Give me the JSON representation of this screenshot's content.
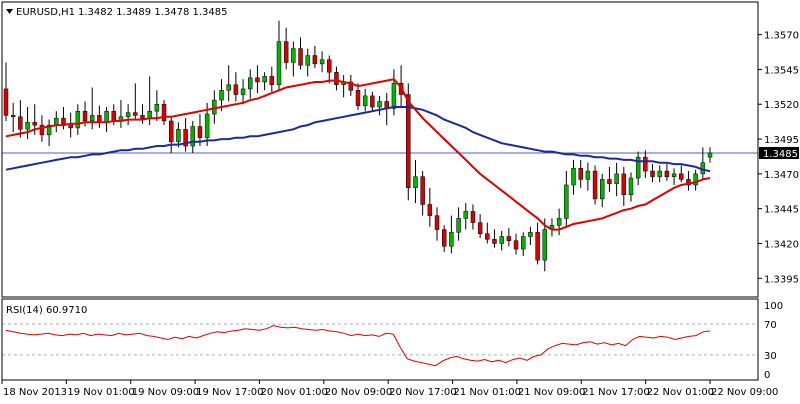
{
  "header": {
    "symbol": "EURUSD,H1",
    "ohlc": "1.3482 1.3489 1.3478 1.3485"
  },
  "rsi_panel": {
    "label": "RSI(14) 60.9710"
  },
  "colors": {
    "bull_candle": "#00b400",
    "bear_candle": "#d80000",
    "candle_outline": "#000000",
    "ma_fast": "#e00000",
    "ma_slow": "#1a2a9a",
    "rsi_line": "#e00000",
    "price_line": "#1a2a9a",
    "grid": "#c8c8c8",
    "level_lines": "#b4b4b4"
  },
  "icons": {
    "symbol_menu": "triangle-down-icon"
  },
  "chart_data": [
    {
      "type": "candlestick",
      "title": "EURUSD,H1",
      "y_ticks": [
        "1.3570",
        "1.3545",
        "1.3520",
        "1.3495",
        "1.3470",
        "1.3445",
        "1.3420",
        "1.3395"
      ],
      "ylim": [
        1.3383,
        1.3592
      ],
      "current_price": "1.3485",
      "x_ticks": [
        "18 Nov 2013",
        "19 Nov 01:00",
        "19 Nov 09:00",
        "19 Nov 17:00",
        "20 Nov 01:00",
        "20 Nov 09:00",
        "20 Nov 17:00",
        "21 Nov 01:00",
        "21 Nov 09:00",
        "21 Nov 17:00",
        "22 Nov 01:00",
        "22 Nov 09:00"
      ],
      "candles": [
        [
          1.3531,
          1.355,
          1.3508,
          1.3512
        ],
        [
          1.3512,
          1.3521,
          1.35,
          1.3511
        ],
        [
          1.3511,
          1.3523,
          1.3496,
          1.3502
        ],
        [
          1.3502,
          1.3518,
          1.3495,
          1.3507
        ],
        [
          1.3507,
          1.352,
          1.3498,
          1.3505
        ],
        [
          1.3505,
          1.3512,
          1.3493,
          1.3498
        ],
        [
          1.3498,
          1.3509,
          1.349,
          1.3505
        ],
        [
          1.3505,
          1.3515,
          1.35,
          1.351
        ],
        [
          1.351,
          1.3518,
          1.3502,
          1.3506
        ],
        [
          1.3506,
          1.3514,
          1.3496,
          1.3503
        ],
        [
          1.3503,
          1.352,
          1.3498,
          1.3515
        ],
        [
          1.3515,
          1.3522,
          1.3504,
          1.3508
        ],
        [
          1.3508,
          1.3532,
          1.3502,
          1.3512
        ],
        [
          1.3512,
          1.3519,
          1.3503,
          1.3507
        ],
        [
          1.3507,
          1.3518,
          1.35,
          1.3515
        ],
        [
          1.3515,
          1.352,
          1.3505,
          1.3508
        ],
        [
          1.3508,
          1.3523,
          1.3503,
          1.3511
        ],
        [
          1.3511,
          1.352,
          1.3505,
          1.3514
        ],
        [
          1.3514,
          1.3535,
          1.3509,
          1.3512
        ],
        [
          1.3512,
          1.352,
          1.3506,
          1.351
        ],
        [
          1.351,
          1.354,
          1.3505,
          1.3515
        ],
        [
          1.3515,
          1.353,
          1.3508,
          1.352
        ],
        [
          1.352,
          1.3523,
          1.3505,
          1.3508
        ],
        [
          1.3508,
          1.3511,
          1.3485,
          1.3493
        ],
        [
          1.3493,
          1.3507,
          1.3489,
          1.3502
        ],
        [
          1.3502,
          1.351,
          1.3486,
          1.349
        ],
        [
          1.349,
          1.3508,
          1.3485,
          1.3504
        ],
        [
          1.3504,
          1.3513,
          1.349,
          1.3496
        ],
        [
          1.3496,
          1.3521,
          1.349,
          1.3513
        ],
        [
          1.3513,
          1.353,
          1.3506,
          1.3523
        ],
        [
          1.3523,
          1.3538,
          1.3515,
          1.353
        ],
        [
          1.353,
          1.3548,
          1.3522,
          1.3534
        ],
        [
          1.3534,
          1.3543,
          1.3522,
          1.3527
        ],
        [
          1.3527,
          1.3538,
          1.352,
          1.3531
        ],
        [
          1.3531,
          1.3545,
          1.3524,
          1.3539
        ],
        [
          1.3539,
          1.3548,
          1.3528,
          1.3536
        ],
        [
          1.3536,
          1.3543,
          1.353,
          1.354
        ],
        [
          1.354,
          1.3547,
          1.3529,
          1.3534
        ],
        [
          1.3534,
          1.358,
          1.353,
          1.3565
        ],
        [
          1.3565,
          1.3575,
          1.3545,
          1.355
        ],
        [
          1.355,
          1.3565,
          1.354,
          1.356
        ],
        [
          1.356,
          1.3568,
          1.3545,
          1.3548
        ],
        [
          1.3548,
          1.356,
          1.354,
          1.3555
        ],
        [
          1.3555,
          1.3562,
          1.3546,
          1.3549
        ],
        [
          1.3549,
          1.3558,
          1.3543,
          1.3552
        ],
        [
          1.3552,
          1.3555,
          1.3535,
          1.3543
        ],
        [
          1.3543,
          1.3547,
          1.353,
          1.3534
        ],
        [
          1.3534,
          1.3541,
          1.3525,
          1.3536
        ],
        [
          1.3536,
          1.3541,
          1.3526,
          1.353
        ],
        [
          1.353,
          1.3535,
          1.3516,
          1.3519
        ],
        [
          1.3519,
          1.3531,
          1.3515,
          1.3526
        ],
        [
          1.3526,
          1.3529,
          1.3515,
          1.3518
        ],
        [
          1.3518,
          1.3526,
          1.3512,
          1.3522
        ],
        [
          1.3522,
          1.3528,
          1.3505,
          1.3517
        ],
        [
          1.3517,
          1.3545,
          1.3512,
          1.3535
        ],
        [
          1.3535,
          1.3548,
          1.3518,
          1.3527
        ],
        [
          1.3527,
          1.3535,
          1.3451,
          1.346
        ],
        [
          1.346,
          1.348,
          1.3449,
          1.3468
        ],
        [
          1.3468,
          1.3472,
          1.344,
          1.3448
        ],
        [
          1.3448,
          1.346,
          1.3432,
          1.344
        ],
        [
          1.344,
          1.3446,
          1.3422,
          1.343
        ],
        [
          1.343,
          1.3433,
          1.3414,
          1.3418
        ],
        [
          1.3418,
          1.344,
          1.3413,
          1.3428
        ],
        [
          1.3428,
          1.3446,
          1.3422,
          1.3438
        ],
        [
          1.3438,
          1.3449,
          1.343,
          1.3443
        ],
        [
          1.3443,
          1.3448,
          1.343,
          1.3435
        ],
        [
          1.3435,
          1.3441,
          1.3424,
          1.3427
        ],
        [
          1.3427,
          1.3435,
          1.342,
          1.3423
        ],
        [
          1.3423,
          1.343,
          1.3417,
          1.342
        ],
        [
          1.342,
          1.3429,
          1.3415,
          1.3425
        ],
        [
          1.3425,
          1.3431,
          1.3418,
          1.3422
        ],
        [
          1.3422,
          1.3427,
          1.3412,
          1.3416
        ],
        [
          1.3416,
          1.3428,
          1.3411,
          1.3425
        ],
        [
          1.3425,
          1.3432,
          1.3419,
          1.3428
        ],
        [
          1.3428,
          1.3435,
          1.3405,
          1.3408
        ],
        [
          1.3408,
          1.3438,
          1.34,
          1.343
        ],
        [
          1.343,
          1.3438,
          1.3425,
          1.3433
        ],
        [
          1.3433,
          1.3445,
          1.3426,
          1.3438
        ],
        [
          1.3438,
          1.3472,
          1.3432,
          1.3462
        ],
        [
          1.3462,
          1.348,
          1.3455,
          1.3474
        ],
        [
          1.3474,
          1.348,
          1.346,
          1.3466
        ],
        [
          1.3466,
          1.3478,
          1.3458,
          1.3472
        ],
        [
          1.3472,
          1.3476,
          1.3448,
          1.3452
        ],
        [
          1.3452,
          1.347,
          1.3446,
          1.3466
        ],
        [
          1.3466,
          1.3475,
          1.3457,
          1.3463
        ],
        [
          1.3463,
          1.3478,
          1.3454,
          1.347
        ],
        [
          1.347,
          1.3475,
          1.3447,
          1.3455
        ],
        [
          1.3455,
          1.3471,
          1.345,
          1.3467
        ],
        [
          1.3467,
          1.3486,
          1.3462,
          1.3482
        ],
        [
          1.3482,
          1.3487,
          1.3467,
          1.3472
        ],
        [
          1.3472,
          1.3477,
          1.3464,
          1.3468
        ],
        [
          1.3468,
          1.3476,
          1.3464,
          1.3472
        ],
        [
          1.3472,
          1.3477,
          1.3465,
          1.3468
        ],
        [
          1.3468,
          1.3474,
          1.3462,
          1.347
        ],
        [
          1.347,
          1.3476,
          1.3464,
          1.3466
        ],
        [
          1.3466,
          1.3472,
          1.3458,
          1.3462
        ],
        [
          1.3462,
          1.3473,
          1.3458,
          1.347
        ],
        [
          1.347,
          1.3489,
          1.3466,
          1.3478
        ],
        [
          1.3482,
          1.3489,
          1.3478,
          1.3485
        ]
      ],
      "series": [
        {
          "values": [
            1.3497,
            1.3498,
            1.3499,
            1.35,
            1.3502,
            1.3503,
            1.3504,
            1.3505,
            1.3505,
            1.3506,
            1.3506,
            1.3507,
            1.3507,
            1.3507,
            1.3507,
            1.3508,
            1.3508,
            1.3509,
            1.3509,
            1.3509,
            1.351,
            1.351,
            1.3511,
            1.3511,
            1.3512,
            1.3513,
            1.3514,
            1.3515,
            1.3516,
            1.3517,
            1.3518,
            1.3519,
            1.352,
            1.3521,
            1.3523,
            1.3524,
            1.3526,
            1.3528,
            1.353,
            1.3532,
            1.3533,
            1.3534,
            1.3535,
            1.3536,
            1.3536,
            1.3537,
            1.3537,
            1.3536,
            1.3535,
            1.3533,
            1.3534,
            1.3535,
            1.3536,
            1.3537,
            1.3538,
            1.3532,
            1.3522,
            1.3516,
            1.351,
            1.3505,
            1.35,
            1.3495,
            1.349,
            1.3485,
            1.348,
            1.3475,
            1.347,
            1.3466,
            1.3462,
            1.3458,
            1.3454,
            1.345,
            1.3446,
            1.3442,
            1.3438,
            1.3433,
            1.343,
            1.343,
            1.3432,
            1.3434,
            1.3435,
            1.3436,
            1.3437,
            1.3438,
            1.344,
            1.3442,
            1.3444,
            1.3445,
            1.3447,
            1.3448,
            1.3451,
            1.3454,
            1.3457,
            1.346,
            1.3462,
            1.3463,
            1.3464,
            1.3466,
            1.3467
          ]
        },
        {
          "values": [
            1.3473,
            1.3474,
            1.3475,
            1.3476,
            1.3477,
            1.3478,
            1.3479,
            1.348,
            1.3481,
            1.3482,
            1.3482,
            1.3483,
            1.3484,
            1.3484,
            1.3485,
            1.3486,
            1.3487,
            1.3487,
            1.3488,
            1.3488,
            1.3489,
            1.349,
            1.349,
            1.3491,
            1.3491,
            1.3492,
            1.3493,
            1.3493,
            1.3494,
            1.3494,
            1.3495,
            1.3495,
            1.3496,
            1.3496,
            1.3497,
            1.3497,
            1.3498,
            1.3499,
            1.35,
            1.3501,
            1.3502,
            1.3504,
            1.3505,
            1.3507,
            1.3508,
            1.3509,
            1.351,
            1.3511,
            1.3512,
            1.3513,
            1.3514,
            1.3515,
            1.3516,
            1.3517,
            1.3518,
            1.3518,
            1.3518,
            1.3517,
            1.3516,
            1.3514,
            1.3512,
            1.3509,
            1.3507,
            1.3505,
            1.3503,
            1.35,
            1.3498,
            1.3496,
            1.3494,
            1.3492,
            1.3491,
            1.349,
            1.3489,
            1.3488,
            1.3487,
            1.3486,
            1.3486,
            1.3485,
            1.3484,
            1.3484,
            1.3483,
            1.3483,
            1.3482,
            1.3482,
            1.3481,
            1.3481,
            1.348,
            1.348,
            1.3479,
            1.3479,
            1.3479,
            1.3478,
            1.3478,
            1.3477,
            1.3477,
            1.3476,
            1.3475,
            1.3473,
            1.3472
          ]
        }
      ]
    },
    {
      "type": "line",
      "title": "RSI(14) 60.9710",
      "y_ticks": [
        "70",
        "30",
        "0"
      ],
      "y_top_label": "100",
      "ylim": [
        0,
        100
      ],
      "levels": [
        70,
        30
      ],
      "values": [
        62,
        60,
        58,
        57,
        56,
        57,
        58,
        56,
        55,
        57,
        56,
        58,
        55,
        57,
        56,
        55,
        58,
        56,
        57,
        58,
        55,
        54,
        52,
        50,
        53,
        51,
        54,
        52,
        55,
        58,
        60,
        59,
        61,
        62,
        64,
        63,
        62,
        64,
        68,
        66,
        65,
        66,
        64,
        63,
        62,
        63,
        61,
        60,
        58,
        55,
        57,
        55,
        56,
        54,
        58,
        57,
        40,
        25,
        22,
        20,
        18,
        16,
        22,
        26,
        28,
        25,
        23,
        22,
        24,
        21,
        23,
        20,
        24,
        26,
        23,
        28,
        30,
        38,
        42,
        45,
        44,
        43,
        46,
        47,
        44,
        46,
        43,
        45,
        42,
        50,
        54,
        53,
        52,
        54,
        53,
        50,
        52,
        54,
        55,
        60,
        61
      ]
    }
  ]
}
